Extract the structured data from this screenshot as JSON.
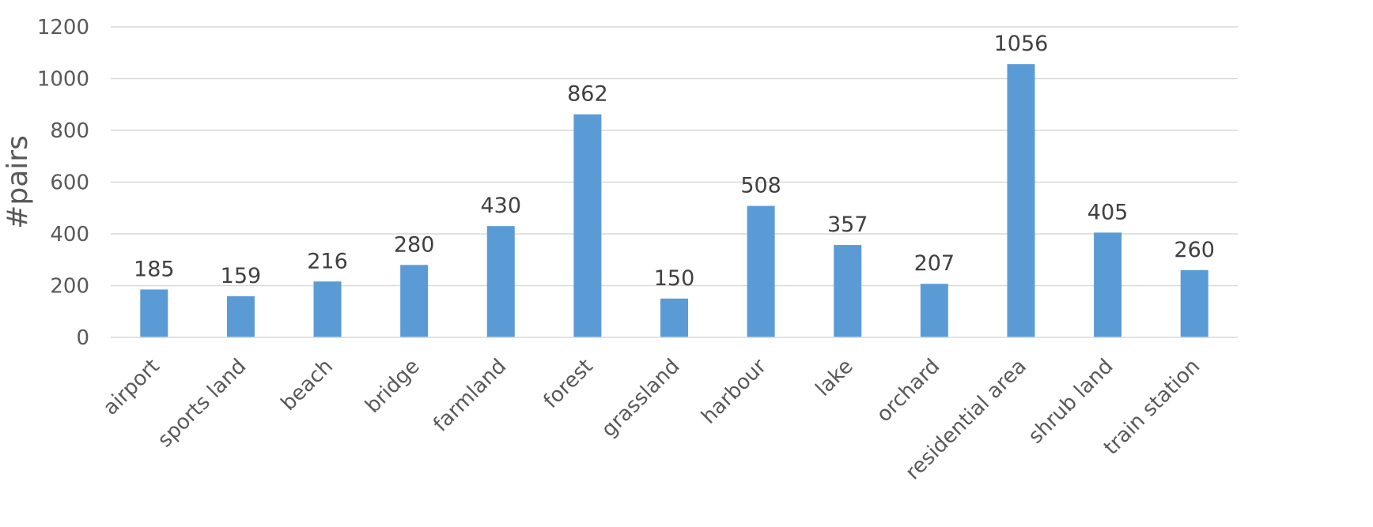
{
  "chart_data": {
    "type": "bar",
    "title": "",
    "xlabel": "",
    "ylabel": "#pairs",
    "ylim": [
      0,
      1200
    ],
    "yticks": [
      0,
      200,
      400,
      600,
      800,
      1000,
      1200
    ],
    "grid": true,
    "categories": [
      "airport",
      "sports land",
      "beach",
      "bridge",
      "farmland",
      "forest",
      "grassland",
      "harbour",
      "lake",
      "orchard",
      "residential area",
      "shrub land",
      "train station"
    ],
    "values": [
      185,
      159,
      216,
      280,
      430,
      862,
      150,
      508,
      357,
      207,
      1056,
      405,
      260
    ],
    "data_labels": true,
    "colors": {
      "bar": "#5b9bd5",
      "grid": "#d9d9d9",
      "axis": "#d9d9d9"
    }
  }
}
